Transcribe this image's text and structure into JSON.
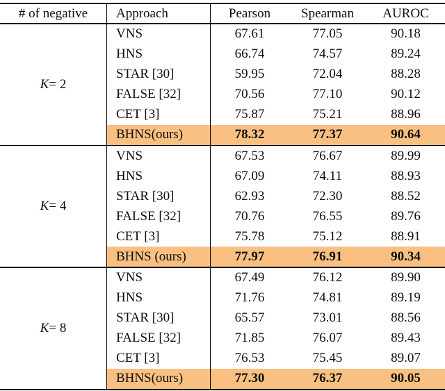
{
  "table": {
    "highlight_color": "#F9C081",
    "header": {
      "negatives": "# of negative",
      "approach": "Approach",
      "pearson": "Pearson",
      "spearman": "Spearman",
      "auroc": "AUROC"
    },
    "groups": [
      {
        "k_var": "K",
        "k_rest": " = 2",
        "rows": [
          {
            "approach": "VNS",
            "pearson": "67.61",
            "spearman": "77.05",
            "auroc": "90.18"
          },
          {
            "approach": "HNS",
            "pearson": "66.74",
            "spearman": "74.57",
            "auroc": "89.24"
          },
          {
            "approach": "STAR [30]",
            "pearson": "59.95",
            "spearman": "72.04",
            "auroc": "88.28"
          },
          {
            "approach": "FALSE [32]",
            "pearson": "70.56",
            "spearman": "77.10",
            "auroc": "90.12"
          },
          {
            "approach": "CET [3]",
            "pearson": "75.87",
            "spearman": "75.21",
            "auroc": "88.96"
          },
          {
            "approach": "BHNS(ours)",
            "pearson": "78.32",
            "spearman": "77.37",
            "auroc": "90.64"
          }
        ]
      },
      {
        "k_var": "K",
        "k_rest": " = 4",
        "rows": [
          {
            "approach": "VNS",
            "pearson": "67.53",
            "spearman": "76.67",
            "auroc": "89.99"
          },
          {
            "approach": "HNS",
            "pearson": "67.09",
            "spearman": "74.11",
            "auroc": "88.93"
          },
          {
            "approach": "STAR [30]",
            "pearson": "62.93",
            "spearman": "72.30",
            "auroc": "88.52"
          },
          {
            "approach": "FALSE [32]",
            "pearson": "70.76",
            "spearman": "76.55",
            "auroc": "89.76"
          },
          {
            "approach": "CET [3]",
            "pearson": "75.78",
            "spearman": "75.12",
            "auroc": "88.91"
          },
          {
            "approach": "BHNS (ours)",
            "pearson": "77.97",
            "spearman": "76.91",
            "auroc": "90.34"
          }
        ]
      },
      {
        "k_var": "K",
        "k_rest": " = 8",
        "rows": [
          {
            "approach": "VNS",
            "pearson": "67.49",
            "spearman": "76.12",
            "auroc": "89.90"
          },
          {
            "approach": "HNS",
            "pearson": "71.76",
            "spearman": "74.81",
            "auroc": "89.19"
          },
          {
            "approach": "STAR [30]",
            "pearson": "65.57",
            "spearman": "73.01",
            "auroc": "88.56"
          },
          {
            "approach": "FALSE [32]",
            "pearson": "71.85",
            "spearman": "76.07",
            "auroc": "89.43"
          },
          {
            "approach": "CET [3]",
            "pearson": "76.53",
            "spearman": "75.45",
            "auroc": "89.07"
          },
          {
            "approach": "BHNS(ours)",
            "pearson": "77.30",
            "spearman": "76.37",
            "auroc": "90.05"
          }
        ]
      }
    ]
  }
}
